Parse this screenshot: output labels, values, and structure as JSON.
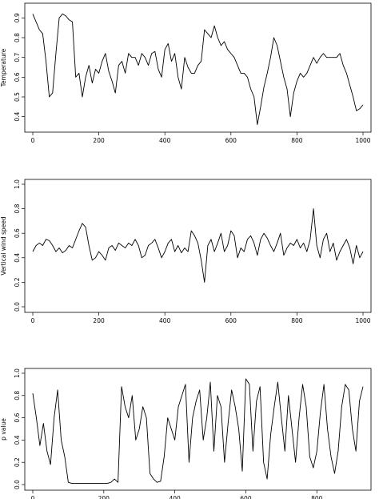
{
  "chart_data": [
    {
      "type": "line",
      "ylabel": "Temperature",
      "xlim": [
        0,
        1000
      ],
      "ylim": [
        0.35,
        0.95
      ],
      "x_ticks": [
        0,
        200,
        400,
        600,
        800,
        1000
      ],
      "y_ticks": [
        0.4,
        0.5,
        0.6,
        0.7,
        0.8,
        0.9
      ],
      "grid": false,
      "series": [
        {
          "x": [
            0,
            10,
            20,
            30,
            40,
            50,
            60,
            70,
            80,
            90,
            100,
            110,
            120,
            130,
            140,
            150,
            160,
            170,
            180,
            190,
            200,
            210,
            220,
            230,
            240,
            250,
            260,
            270,
            280,
            290,
            300,
            310,
            320,
            330,
            340,
            350,
            360,
            370,
            380,
            390,
            400,
            410,
            420,
            430,
            440,
            450,
            460,
            470,
            480,
            490,
            500,
            510,
            520,
            530,
            540,
            550,
            560,
            570,
            580,
            590,
            600,
            610,
            620,
            630,
            640,
            650,
            660,
            670,
            680,
            690,
            700,
            710,
            720,
            730,
            740,
            750,
            760,
            770,
            780,
            790,
            800,
            810,
            820,
            830,
            840,
            850,
            860,
            870,
            880,
            890,
            900,
            910,
            920,
            930,
            940,
            950,
            960,
            970,
            980,
            990,
            1000
          ],
          "values": [
            0.92,
            0.88,
            0.84,
            0.82,
            0.68,
            0.5,
            0.52,
            0.72,
            0.9,
            0.92,
            0.91,
            0.89,
            0.88,
            0.6,
            0.62,
            0.5,
            0.6,
            0.66,
            0.57,
            0.64,
            0.62,
            0.68,
            0.72,
            0.63,
            0.58,
            0.52,
            0.66,
            0.68,
            0.62,
            0.72,
            0.7,
            0.7,
            0.66,
            0.72,
            0.7,
            0.66,
            0.72,
            0.73,
            0.64,
            0.6,
            0.74,
            0.77,
            0.68,
            0.72,
            0.6,
            0.54,
            0.7,
            0.65,
            0.62,
            0.62,
            0.66,
            0.68,
            0.84,
            0.82,
            0.8,
            0.86,
            0.8,
            0.76,
            0.78,
            0.74,
            0.72,
            0.7,
            0.66,
            0.62,
            0.62,
            0.6,
            0.54,
            0.5,
            0.36,
            0.45,
            0.55,
            0.62,
            0.7,
            0.8,
            0.76,
            0.68,
            0.6,
            0.54,
            0.4,
            0.52,
            0.58,
            0.62,
            0.6,
            0.62,
            0.66,
            0.7,
            0.67,
            0.7,
            0.72,
            0.7,
            0.7,
            0.7,
            0.7,
            0.72,
            0.66,
            0.62,
            0.56,
            0.5,
            0.43,
            0.44,
            0.46
          ]
        }
      ]
    },
    {
      "type": "line",
      "ylabel": "Vertical wind speed",
      "xlim": [
        0,
        1000
      ],
      "ylim": [
        0,
        1
      ],
      "x_ticks": [
        0,
        200,
        400,
        600,
        800,
        1000
      ],
      "y_ticks": [
        0.0,
        0.2,
        0.4,
        0.6,
        0.8,
        1.0
      ],
      "grid": false,
      "series": [
        {
          "x": [
            0,
            10,
            20,
            30,
            40,
            50,
            60,
            70,
            80,
            90,
            100,
            110,
            120,
            130,
            140,
            150,
            160,
            170,
            180,
            190,
            200,
            210,
            220,
            230,
            240,
            250,
            260,
            270,
            280,
            290,
            300,
            310,
            320,
            330,
            340,
            350,
            360,
            370,
            380,
            390,
            400,
            410,
            420,
            430,
            440,
            450,
            460,
            470,
            480,
            490,
            500,
            510,
            520,
            530,
            540,
            550,
            560,
            570,
            580,
            590,
            600,
            610,
            620,
            630,
            640,
            650,
            660,
            670,
            680,
            690,
            700,
            710,
            720,
            730,
            740,
            750,
            760,
            770,
            780,
            790,
            800,
            810,
            820,
            830,
            840,
            850,
            860,
            870,
            880,
            890,
            900,
            910,
            920,
            930,
            940,
            950,
            960,
            970,
            980,
            990,
            1000
          ],
          "values": [
            0.45,
            0.5,
            0.52,
            0.5,
            0.55,
            0.54,
            0.5,
            0.45,
            0.48,
            0.44,
            0.46,
            0.5,
            0.48,
            0.55,
            0.62,
            0.68,
            0.65,
            0.5,
            0.38,
            0.4,
            0.45,
            0.42,
            0.38,
            0.48,
            0.5,
            0.46,
            0.52,
            0.5,
            0.48,
            0.52,
            0.5,
            0.55,
            0.5,
            0.4,
            0.42,
            0.5,
            0.52,
            0.55,
            0.48,
            0.4,
            0.45,
            0.52,
            0.55,
            0.45,
            0.5,
            0.44,
            0.48,
            0.45,
            0.62,
            0.58,
            0.52,
            0.38,
            0.2,
            0.5,
            0.55,
            0.45,
            0.52,
            0.6,
            0.45,
            0.5,
            0.62,
            0.58,
            0.4,
            0.48,
            0.45,
            0.55,
            0.58,
            0.52,
            0.42,
            0.55,
            0.6,
            0.56,
            0.5,
            0.45,
            0.52,
            0.6,
            0.42,
            0.48,
            0.52,
            0.5,
            0.55,
            0.48,
            0.52,
            0.45,
            0.55,
            0.8,
            0.5,
            0.4,
            0.55,
            0.6,
            0.45,
            0.52,
            0.38,
            0.45,
            0.5,
            0.55,
            0.48,
            0.35,
            0.5,
            0.4,
            0.45
          ]
        }
      ]
    },
    {
      "type": "line",
      "ylabel": "p value",
      "xlim": [
        0,
        930
      ],
      "ylim": [
        0,
        1
      ],
      "x_ticks": [
        0,
        200,
        400,
        600,
        800
      ],
      "y_ticks": [
        0.0,
        0.2,
        0.4,
        0.6,
        0.8,
        1.0
      ],
      "grid": false,
      "series": [
        {
          "x": [
            0,
            10,
            20,
            30,
            40,
            50,
            60,
            70,
            80,
            90,
            100,
            110,
            120,
            130,
            140,
            150,
            160,
            170,
            180,
            190,
            200,
            210,
            220,
            230,
            240,
            250,
            260,
            270,
            280,
            290,
            300,
            310,
            320,
            330,
            340,
            350,
            360,
            370,
            380,
            390,
            400,
            410,
            420,
            430,
            440,
            450,
            460,
            470,
            480,
            490,
            500,
            510,
            520,
            530,
            540,
            550,
            560,
            570,
            580,
            590,
            600,
            610,
            620,
            630,
            640,
            650,
            660,
            670,
            680,
            690,
            700,
            710,
            720,
            730,
            740,
            750,
            760,
            770,
            780,
            790,
            800,
            810,
            820,
            830,
            840,
            850,
            860,
            870,
            880,
            890,
            900,
            910,
            920,
            930
          ],
          "values": [
            0.82,
            0.6,
            0.35,
            0.55,
            0.3,
            0.18,
            0.6,
            0.85,
            0.4,
            0.25,
            0.02,
            0.01,
            0.01,
            0.01,
            0.01,
            0.01,
            0.01,
            0.01,
            0.01,
            0.01,
            0.01,
            0.01,
            0.02,
            0.05,
            0.02,
            0.88,
            0.7,
            0.6,
            0.8,
            0.4,
            0.5,
            0.7,
            0.6,
            0.1,
            0.05,
            0.02,
            0.03,
            0.25,
            0.6,
            0.5,
            0.4,
            0.7,
            0.8,
            0.9,
            0.2,
            0.6,
            0.75,
            0.85,
            0.4,
            0.6,
            0.92,
            0.3,
            0.8,
            0.7,
            0.2,
            0.55,
            0.85,
            0.7,
            0.5,
            0.12,
            0.95,
            0.9,
            0.3,
            0.75,
            0.88,
            0.2,
            0.05,
            0.45,
            0.7,
            0.92,
            0.6,
            0.3,
            0.8,
            0.5,
            0.2,
            0.6,
            0.9,
            0.7,
            0.25,
            0.15,
            0.3,
            0.65,
            0.9,
            0.5,
            0.25,
            0.1,
            0.3,
            0.7,
            0.9,
            0.85,
            0.5,
            0.3,
            0.75,
            0.88
          ]
        }
      ]
    }
  ]
}
